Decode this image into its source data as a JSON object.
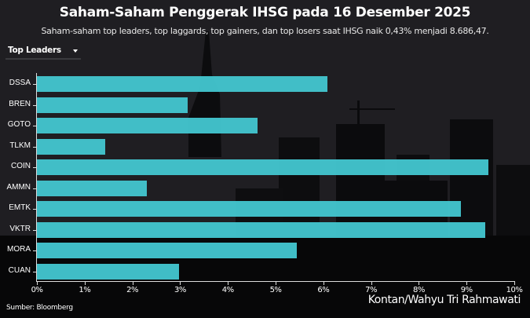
{
  "header": {
    "title": "Saham-Saham Penggerak IHSG pada 16 Desember 2025",
    "subtitle": "Saham-saham top leaders, top laggards, top gainers, dan top losers saat IHSG naik 0,43% menjadi 8.686,47."
  },
  "dropdown": {
    "selected": "Top Leaders",
    "icon": "caret-down-icon"
  },
  "footer": {
    "source": "Sumber: Bloomberg",
    "credit": "Kontan/Wahyu Tri Rahmawati"
  },
  "colors": {
    "bar": "#42c3cc",
    "background": "#1f1e22",
    "text": "#ffffff"
  },
  "chart_data": {
    "type": "bar",
    "orientation": "horizontal",
    "title": "Saham-Saham Penggerak IHSG pada 16 Desember 2025",
    "subtitle": "Saham-saham top leaders, top laggards, top gainers, dan top losers saat IHSG naik 0,43% menjadi 8.686,47.",
    "categories": [
      "DSSA",
      "BREN",
      "GOTO",
      "TLKM",
      "COIN",
      "AMMN",
      "EMTK",
      "VKTR",
      "MORA",
      "CUAN"
    ],
    "values": [
      6.09,
      3.16,
      4.62,
      1.43,
      9.46,
      2.3,
      8.88,
      9.39,
      5.44,
      2.98
    ],
    "xlabel": "",
    "ylabel": "",
    "xlim": [
      0,
      10
    ],
    "x_ticks": [
      "0%",
      "1%",
      "2%",
      "3%",
      "4%",
      "5%",
      "6%",
      "7%",
      "8%",
      "9%",
      "10%"
    ],
    "grid": false,
    "legend": null,
    "unit": "%"
  }
}
